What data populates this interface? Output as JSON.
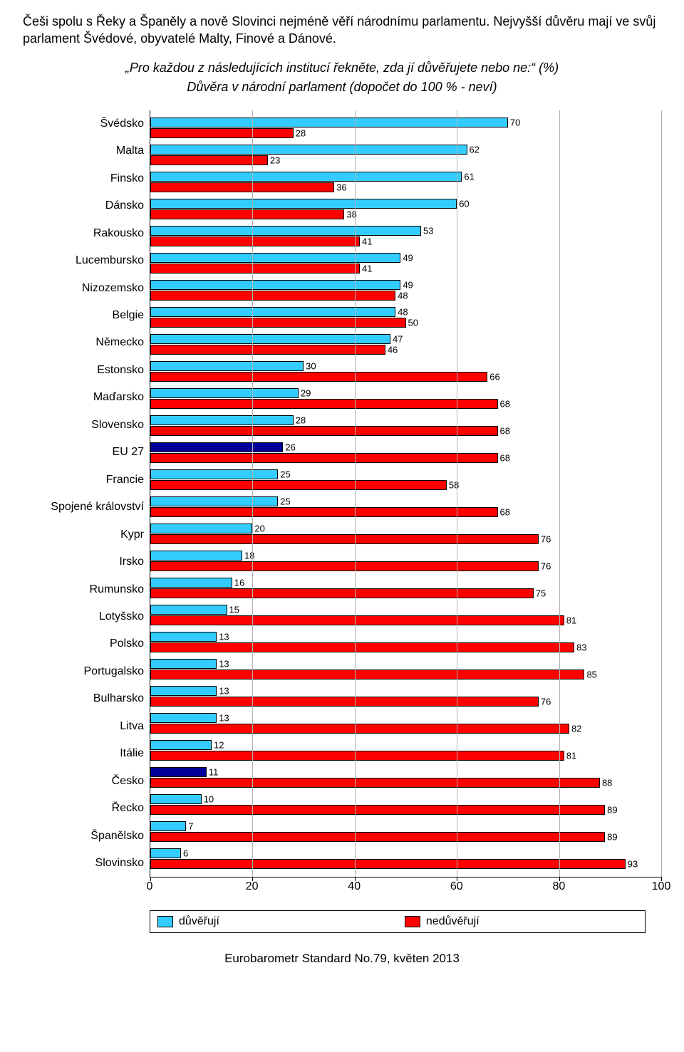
{
  "intro_text": "Češi spolu s Řeky a Španěly a nově Slovinci nejméně věří národnímu parlamentu. Nejvyšší důvěru mají ve svůj parlament Švédové, obyvatelé Malty, Finové a Dánové.",
  "chart": {
    "title": "„Pro každou z následujících institucí řekněte, zda jí důvěřujete nebo ne:“ (%)",
    "subtitle": "Důvěra v národní parlament (dopočet do 100 % - neví)",
    "type": "grouped_horizontal_bar",
    "xlim": [
      0,
      100
    ],
    "xtick_step": 20,
    "xticks": [
      0,
      20,
      40,
      60,
      80,
      100
    ],
    "background_color": "#ffffff",
    "grid_color": "#b0b0b0",
    "axis_color": "#000000",
    "bar_border_color": "#000000",
    "label_fontsize": 16,
    "bar_label_fontsize": 13,
    "series": [
      {
        "key": "trust",
        "label": "důvěřují",
        "color": "#33ccff"
      },
      {
        "key": "distrust",
        "label": "nedůvěřují",
        "color": "#ff0000"
      }
    ],
    "highlight_color": "#000099",
    "highlight_countries": [
      "EU 27",
      "Česko"
    ],
    "countries": [
      {
        "name": "Švédsko",
        "trust": 70,
        "distrust": 28
      },
      {
        "name": "Malta",
        "trust": 62,
        "distrust": 23
      },
      {
        "name": "Finsko",
        "trust": 61,
        "distrust": 36
      },
      {
        "name": "Dánsko",
        "trust": 60,
        "distrust": 38
      },
      {
        "name": "Rakousko",
        "trust": 53,
        "distrust": 41
      },
      {
        "name": "Lucembursko",
        "trust": 49,
        "distrust": 41
      },
      {
        "name": "Nizozemsko",
        "trust": 49,
        "distrust": 48
      },
      {
        "name": "Belgie",
        "trust": 48,
        "distrust": 50
      },
      {
        "name": "Německo",
        "trust": 47,
        "distrust": 46
      },
      {
        "name": "Estonsko",
        "trust": 30,
        "distrust": 66
      },
      {
        "name": "Maďarsko",
        "trust": 29,
        "distrust": 68
      },
      {
        "name": "Slovensko",
        "trust": 28,
        "distrust": 68
      },
      {
        "name": "EU 27",
        "trust": 26,
        "distrust": 68
      },
      {
        "name": "Francie",
        "trust": 25,
        "distrust": 58
      },
      {
        "name": "Spojené království",
        "trust": 25,
        "distrust": 68
      },
      {
        "name": "Kypr",
        "trust": 20,
        "distrust": 76
      },
      {
        "name": "Irsko",
        "trust": 18,
        "distrust": 76
      },
      {
        "name": "Rumunsko",
        "trust": 16,
        "distrust": 75
      },
      {
        "name": "Lotyšsko",
        "trust": 15,
        "distrust": 81
      },
      {
        "name": "Polsko",
        "trust": 13,
        "distrust": 83
      },
      {
        "name": "Portugalsko",
        "trust": 13,
        "distrust": 85
      },
      {
        "name": "Bulharsko",
        "trust": 13,
        "distrust": 76
      },
      {
        "name": "Litva",
        "trust": 13,
        "distrust": 82
      },
      {
        "name": "Itálie",
        "trust": 12,
        "distrust": 81
      },
      {
        "name": "Česko",
        "trust": 11,
        "distrust": 88
      },
      {
        "name": "Řecko",
        "trust": 10,
        "distrust": 89
      },
      {
        "name": "Španělsko",
        "trust": 7,
        "distrust": 89
      },
      {
        "name": "Slovinsko",
        "trust": 6,
        "distrust": 93
      }
    ]
  },
  "footer_text": "Eurobarometr Standard No.79, květen 2013"
}
